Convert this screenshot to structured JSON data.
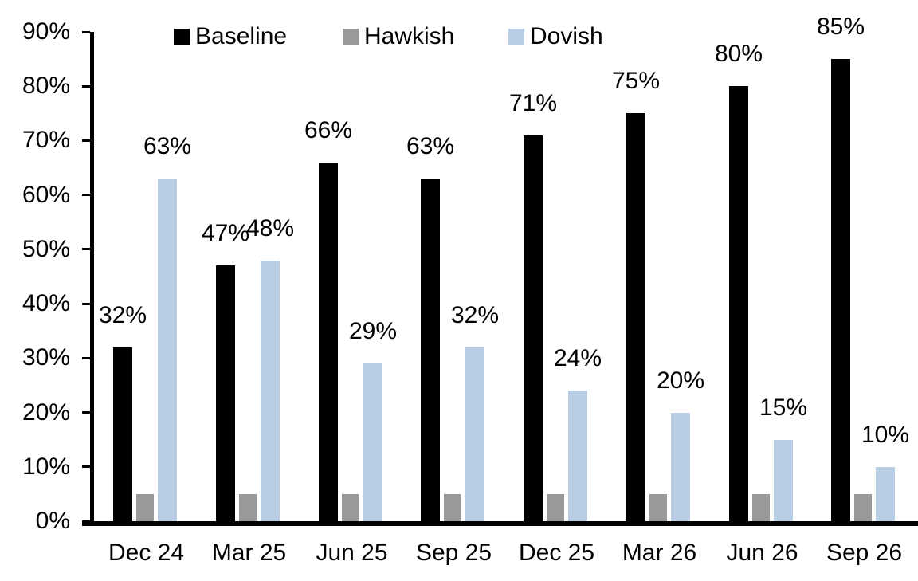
{
  "chart_data": {
    "type": "bar",
    "title": "",
    "xlabel": "",
    "ylabel": "",
    "categories": [
      "Dec 24",
      "Mar 25",
      "Jun 25",
      "Sep 25",
      "Dec 25",
      "Mar 26",
      "Jun 26",
      "Sep 26"
    ],
    "series": [
      {
        "name": "Baseline",
        "color": "#000000",
        "values": [
          32,
          47,
          66,
          63,
          71,
          75,
          80,
          85
        ],
        "labels_shown": true
      },
      {
        "name": "Hawkish",
        "color": "#999999",
        "values": [
          5,
          5,
          5,
          5,
          5,
          5,
          5,
          5
        ],
        "labels_shown": false
      },
      {
        "name": "Dovish",
        "color": "#B9CDE4",
        "values": [
          63,
          48,
          29,
          32,
          24,
          20,
          15,
          10
        ],
        "labels_shown": true
      }
    ],
    "data_label_suffix": "%",
    "ylim": [
      0,
      90
    ],
    "ytick_step": 10,
    "ytick_labels": [
      "0%",
      "10%",
      "20%",
      "30%",
      "40%",
      "50%",
      "60%",
      "70%",
      "80%",
      "90%"
    ],
    "grid": false,
    "legend_position": "top",
    "axis_color": "#000000",
    "background_color": "#ffffff"
  }
}
